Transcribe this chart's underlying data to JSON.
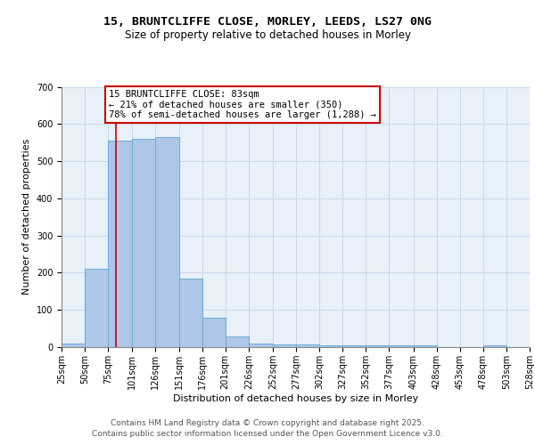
{
  "title_line1": "15, BRUNTCLIFFE CLOSE, MORLEY, LEEDS, LS27 0NG",
  "title_line2": "Size of property relative to detached houses in Morley",
  "xlabel": "Distribution of detached houses by size in Morley",
  "ylabel": "Number of detached properties",
  "bar_left_edges": [
    25,
    50,
    75,
    101,
    126,
    151,
    176,
    201,
    226,
    252,
    277,
    302,
    327,
    352,
    377,
    403,
    428,
    453,
    478,
    503
  ],
  "bar_heights": [
    10,
    210,
    555,
    560,
    565,
    185,
    80,
    28,
    10,
    7,
    7,
    5,
    5,
    5,
    5,
    5,
    0,
    0,
    5,
    0
  ],
  "bar_widths": [
    25,
    25,
    26,
    25,
    25,
    25,
    25,
    25,
    26,
    25,
    25,
    25,
    25,
    25,
    26,
    25,
    25,
    25,
    25,
    25
  ],
  "bar_color": "#aec6e8",
  "bar_edge_color": "#6baed6",
  "bar_edge_width": 0.7,
  "red_line_x": 83,
  "red_line_color": "#cc0000",
  "annotation_text": "15 BRUNTCLIFFE CLOSE: 83sqm\n← 21% of detached houses are smaller (350)\n78% of semi-detached houses are larger (1,288) →",
  "annotation_box_color": "white",
  "annotation_box_edge": "#cc0000",
  "ylim": [
    0,
    700
  ],
  "yticks": [
    0,
    100,
    200,
    300,
    400,
    500,
    600,
    700
  ],
  "xtick_labels": [
    "25sqm",
    "50sqm",
    "75sqm",
    "101sqm",
    "126sqm",
    "151sqm",
    "176sqm",
    "201sqm",
    "226sqm",
    "252sqm",
    "277sqm",
    "302sqm",
    "327sqm",
    "352sqm",
    "377sqm",
    "403sqm",
    "428sqm",
    "453sqm",
    "478sqm",
    "503sqm",
    "528sqm"
  ],
  "xtick_positions": [
    25,
    50,
    75,
    101,
    126,
    151,
    176,
    201,
    226,
    252,
    277,
    302,
    327,
    352,
    377,
    403,
    428,
    453,
    478,
    503,
    528
  ],
  "grid_color": "#c8d8e8",
  "background_color": "#e8f0f8",
  "footer_line1": "Contains HM Land Registry data © Crown copyright and database right 2025.",
  "footer_line2": "Contains public sector information licensed under the Open Government Licence v3.0.",
  "title_fontsize": 9.5,
  "subtitle_fontsize": 8.5,
  "axis_label_fontsize": 8,
  "tick_fontsize": 7,
  "annotation_fontsize": 7.5,
  "footer_fontsize": 6.5
}
